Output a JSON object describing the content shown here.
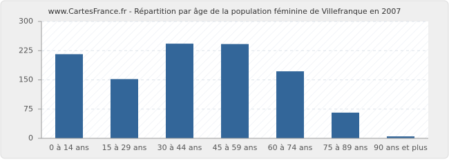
{
  "chart_data": {
    "type": "bar",
    "title": "www.CartesFrance.fr - Répartition par âge de la population féminine de Villefranque en 2007",
    "categories": [
      "0 à 14 ans",
      "15 à 29 ans",
      "30 à 44 ans",
      "45 à 59 ans",
      "60 à 74 ans",
      "75 à 89 ans",
      "90 ans et plus"
    ],
    "values": [
      216,
      152,
      243,
      242,
      172,
      66,
      5
    ],
    "color": "#336699",
    "ylim": [
      0,
      300
    ],
    "yticks": [
      0,
      75,
      150,
      225,
      300
    ],
    "grid": true
  }
}
